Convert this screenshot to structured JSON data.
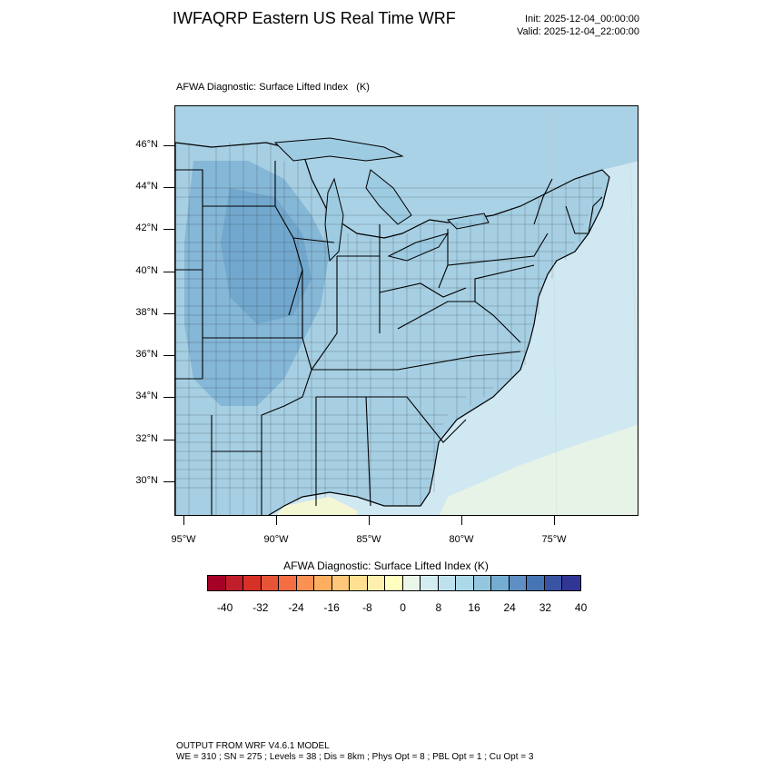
{
  "header": {
    "title": "IWFAQRP Eastern US Real Time WRF",
    "init": "Init: 2025-12-04_00:00:00",
    "valid": "Valid: 2025-12-04_22:00:00"
  },
  "map": {
    "field_title": "AFWA Diagnostic: Surface Lifted Index   (K)",
    "lat_labels": [
      "46°N",
      "44°N",
      "42°N",
      "40°N",
      "38°N",
      "36°N",
      "34°N",
      "32°N",
      "30°N"
    ],
    "lon_labels": [
      "95°W",
      "90°W",
      "85°W",
      "80°W",
      "75°W"
    ],
    "colors": {
      "ocean": "#cfe8f2",
      "land_mid": "#a6cfe3",
      "land_dark": "#7fb3d5",
      "land_darker": "#6ea4cc",
      "warm_patch": "#eef6d6",
      "lake": "#9dcbe2",
      "canada": "#a9d2e6"
    }
  },
  "colorbar": {
    "title": "AFWA Diagnostic: Surface Lifted Index  (K)",
    "tick_labels": [
      "-40",
      "-32",
      "-24",
      "-16",
      "-8",
      "0",
      "8",
      "16",
      "24",
      "32",
      "40"
    ],
    "colors": [
      "#a50026",
      "#c11e2b",
      "#d73027",
      "#e75538",
      "#f46d43",
      "#f99153",
      "#fdae61",
      "#fec77a",
      "#fee090",
      "#fff0b0",
      "#ffffbf",
      "#e9f6e8",
      "#d3ecf2",
      "#bfe1ee",
      "#abd9e9",
      "#94c7df",
      "#74add1",
      "#5f8fc4",
      "#4575b4",
      "#3a54a4",
      "#313695"
    ]
  },
  "footer": {
    "line1": "OUTPUT FROM WRF V4.6.1 MODEL",
    "line2": "WE = 310 ; SN = 275 ; Levels = 38 ; Dis = 8km ; Phys Opt = 8 ; PBL Opt = 1 ; Cu Opt = 3"
  }
}
